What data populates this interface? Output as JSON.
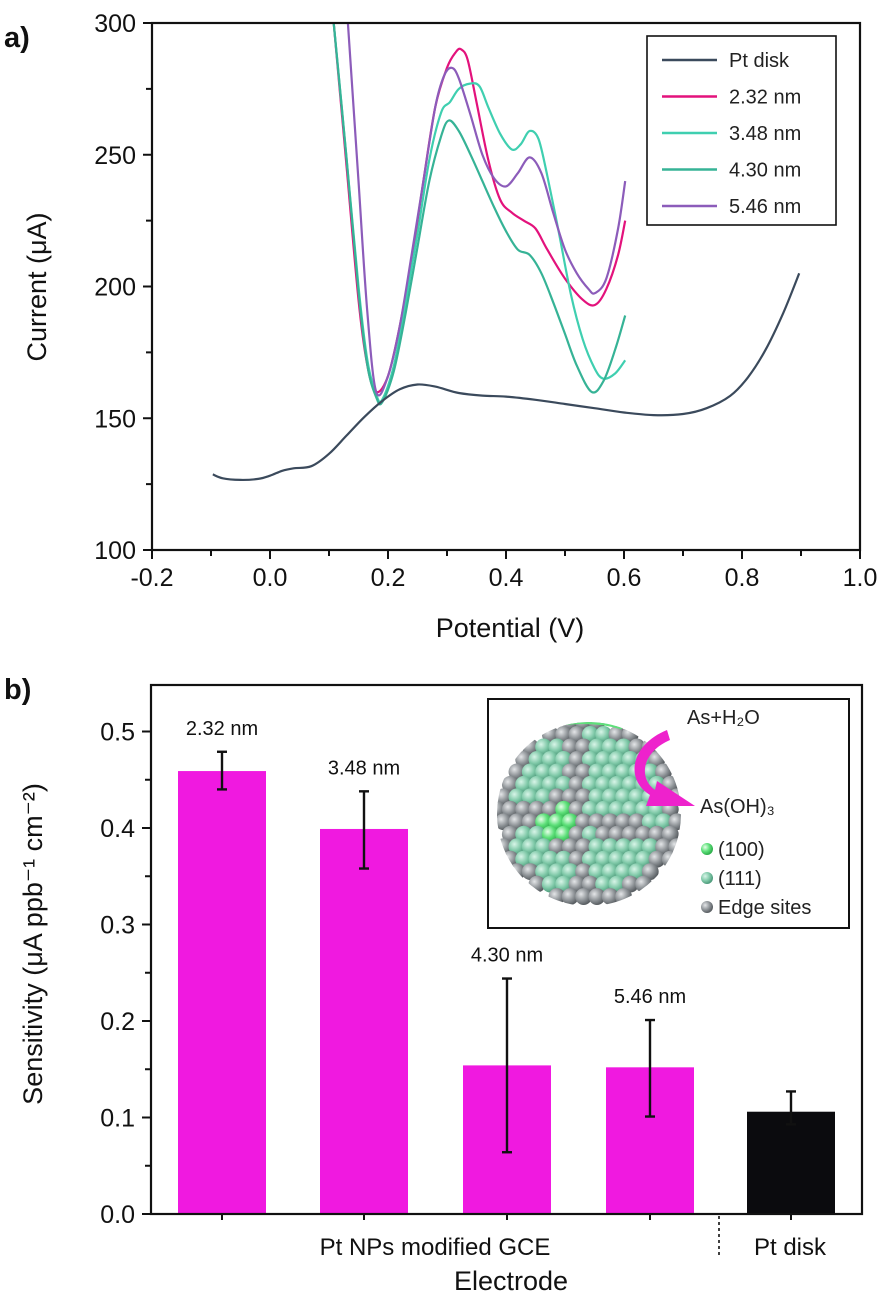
{
  "chart_data": [
    {
      "panel": "a)",
      "type": "line",
      "title": "",
      "xlabel": "Potential (V)",
      "ylabel": "Current (μA)",
      "xlim": [
        -0.2,
        1.0
      ],
      "ylim": [
        100,
        300
      ],
      "xticks": [
        "-0.2",
        "0.0",
        "0.2",
        "0.4",
        "0.6",
        "0.8",
        "1.0"
      ],
      "yticks": [
        "100",
        "150",
        "200",
        "250",
        "300"
      ],
      "grid": false,
      "legend_position": "top-right",
      "series": [
        {
          "name": "Pt disk",
          "color": "#3b4a5c",
          "x": [
            -0.097,
            -0.08,
            -0.05,
            -0.02,
            0.0,
            0.02,
            0.04,
            0.07,
            0.1,
            0.13,
            0.16,
            0.19,
            0.22,
            0.25,
            0.28,
            0.32,
            0.36,
            0.4,
            0.45,
            0.5,
            0.55,
            0.6,
            0.65,
            0.7,
            0.74,
            0.78,
            0.81,
            0.84,
            0.87,
            0.897
          ],
          "y": [
            128.7,
            127.2,
            126.6,
            127.0,
            128.2,
            130.0,
            131.0,
            131.8,
            136.5,
            143.5,
            150.5,
            156.5,
            161.0,
            162.8,
            162.0,
            159.6,
            158.6,
            158.2,
            157.0,
            155.4,
            153.8,
            152.2,
            151.2,
            151.6,
            153.8,
            158.5,
            165.5,
            176.0,
            190.0,
            205.0
          ]
        },
        {
          "name": "2.32 nm",
          "color": "#e3127c",
          "x": [
            0.108,
            0.13,
            0.15,
            0.165,
            0.18,
            0.2,
            0.22,
            0.24,
            0.26,
            0.28,
            0.3,
            0.315,
            0.324,
            0.335,
            0.35,
            0.37,
            0.39,
            0.41,
            0.43,
            0.45,
            0.47,
            0.5,
            0.53,
            0.551,
            0.57,
            0.59,
            0.602
          ],
          "y": [
            300,
            245,
            195,
            170,
            160,
            166,
            185,
            210,
            240,
            268,
            283,
            289,
            290,
            286,
            270,
            248,
            233,
            228,
            225,
            222,
            214,
            203,
            195,
            193,
            199,
            212,
            225
          ]
        },
        {
          "name": "3.48 nm",
          "color": "#3fcfb0",
          "x": [
            0.108,
            0.13,
            0.15,
            0.165,
            0.18,
            0.19,
            0.21,
            0.23,
            0.25,
            0.27,
            0.29,
            0.305,
            0.32,
            0.339,
            0.355,
            0.37,
            0.39,
            0.41,
            0.425,
            0.44,
            0.455,
            0.47,
            0.49,
            0.51,
            0.53,
            0.55,
            0.565,
            0.585,
            0.602
          ],
          "y": [
            300,
            248,
            200,
            172,
            159,
            157,
            170,
            194,
            220,
            248,
            266,
            270,
            275,
            277,
            276,
            268,
            258,
            252,
            254,
            259,
            256,
            242,
            220,
            197,
            180,
            169,
            165,
            167,
            172
          ]
        },
        {
          "name": "4.30 nm",
          "color": "#36b396",
          "x": [
            0.108,
            0.13,
            0.15,
            0.165,
            0.18,
            0.19,
            0.21,
            0.23,
            0.25,
            0.27,
            0.29,
            0.303,
            0.32,
            0.34,
            0.36,
            0.38,
            0.4,
            0.42,
            0.44,
            0.46,
            0.48,
            0.5,
            0.52,
            0.545,
            0.565,
            0.585,
            0.602
          ],
          "y": [
            300,
            248,
            198,
            170,
            158,
            156,
            168,
            190,
            215,
            240,
            257,
            263,
            259,
            250,
            240,
            230,
            221,
            214,
            212,
            205,
            194,
            182,
            170,
            160,
            164,
            176,
            189
          ]
        },
        {
          "name": "5.46 nm",
          "color": "#8c5cba",
          "x": [
            0.132,
            0.15,
            0.165,
            0.18,
            0.2,
            0.22,
            0.24,
            0.26,
            0.28,
            0.295,
            0.308,
            0.32,
            0.34,
            0.36,
            0.38,
            0.4,
            0.42,
            0.44,
            0.46,
            0.48,
            0.5,
            0.52,
            0.54,
            0.551,
            0.57,
            0.59,
            0.602
          ],
          "y": [
            300,
            240,
            190,
            160,
            166,
            185,
            212,
            240,
            268,
            280,
            283,
            279,
            265,
            250,
            241,
            238,
            243,
            249,
            243,
            228,
            214,
            205,
            199,
            197.5,
            203,
            222,
            240
          ]
        }
      ]
    },
    {
      "panel": "b)",
      "type": "bar",
      "title": "",
      "xlabel": "Electrode",
      "ylabel": "Sensitivity (μA ppb⁻¹ cm⁻²)",
      "ylim": [
        0.0,
        0.55
      ],
      "yticks": [
        "0.0",
        "0.1",
        "0.2",
        "0.3",
        "0.4",
        "0.5"
      ],
      "grid": false,
      "group_labels": [
        "Pt  NPs modified  GCE",
        "Pt disk"
      ],
      "categories": [
        "2.32 nm",
        "3.48 nm",
        "4.30 nm",
        "5.46 nm",
        "Pt disk"
      ],
      "values": [
        0.459,
        0.399,
        0.154,
        0.152,
        0.106
      ],
      "error_low": [
        0.44,
        0.358,
        0.064,
        0.101,
        0.093
      ],
      "error_high": [
        0.479,
        0.438,
        0.244,
        0.201,
        0.127
      ],
      "colors": [
        "#f019e0",
        "#f019e0",
        "#f019e0",
        "#f019e0",
        "#0b0b0e"
      ],
      "bar_labels": [
        "2.32 nm",
        "3.48 nm",
        "4.30 nm",
        "5.46 nm",
        ""
      ],
      "inset": {
        "reaction_in": "As+H₂O",
        "reaction_out": "As(OH)₃",
        "legend": [
          {
            "label": "(100)",
            "color": "#5de07a"
          },
          {
            "label": "(111)",
            "color": "#7cc9a6"
          },
          {
            "label": "Edge sites",
            "color": "#8f9498"
          }
        ],
        "arrow_color": "#ee22cc"
      }
    }
  ]
}
